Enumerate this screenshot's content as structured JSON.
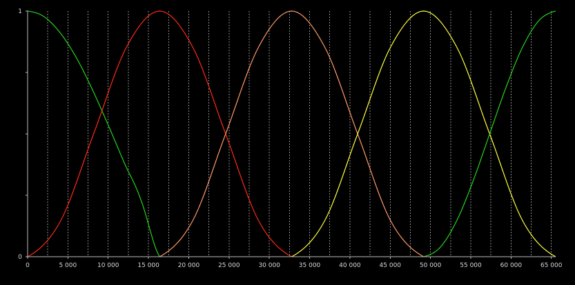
{
  "colors": {
    "background": "#000000",
    "frame": "#bfbfbf",
    "grid": "#8c8c8c",
    "text": "#d9d9d9"
  },
  "chart_data": {
    "type": "line",
    "title": "",
    "xlabel": "",
    "ylabel": "",
    "grid": true,
    "legend": "none",
    "xlim": [
      0,
      65536
    ],
    "ylim": [
      0,
      1
    ],
    "x_ticks": [
      0,
      5000,
      10000,
      15000,
      20000,
      25000,
      30000,
      35000,
      40000,
      45000,
      50000,
      55000,
      60000,
      65000
    ],
    "x_tick_labels": [
      "0",
      "5 000",
      "10 000",
      "15 000",
      "20 000",
      "25 000",
      "30 000",
      "35 000",
      "40 000",
      "45 000",
      "50 000",
      "55 000",
      "60 000",
      "65 000"
    ],
    "y_ticks": [
      0,
      0.25,
      0.5,
      0.75,
      1
    ],
    "y_tick_labels": [
      "0",
      "",
      "",
      "",
      "1"
    ],
    "minor_x_gridlines": [
      2500,
      7500,
      12500,
      17500,
      22500,
      27500,
      32500,
      37500,
      42500,
      47500,
      52500,
      57500,
      62500
    ],
    "series": [
      {
        "color": "#27d41d",
        "x": [
          0,
          2000,
          4000,
          6000,
          8000,
          10000,
          12000,
          14000,
          16384
        ],
        "y": [
          1.0,
          0.978,
          0.913,
          0.813,
          0.683,
          0.536,
          0.382,
          0.236,
          0.0
        ]
      },
      {
        "color": "#ff2a18",
        "x": [
          0,
          4096,
          8192,
          12288,
          16384,
          20480,
          24576,
          28672,
          32768
        ],
        "y": [
          0.0,
          0.146,
          0.5,
          0.854,
          1.0,
          0.854,
          0.5,
          0.146,
          0.0
        ]
      },
      {
        "color": "#ff9b6a",
        "x": [
          16384,
          20480,
          24576,
          28672,
          32768,
          36864,
          40960,
          45056,
          49152
        ],
        "y": [
          0.0,
          0.146,
          0.5,
          0.854,
          1.0,
          0.854,
          0.5,
          0.146,
          0.0
        ]
      },
      {
        "color": "#ffff40",
        "x": [
          32768,
          36864,
          40960,
          45056,
          49152,
          53248,
          57344,
          61440,
          65536
        ],
        "y": [
          0.0,
          0.146,
          0.5,
          0.854,
          1.0,
          0.854,
          0.5,
          0.146,
          0.0
        ]
      },
      {
        "color": "#27d41d",
        "x": [
          49152,
          51200,
          53248,
          55296,
          57344,
          59392,
          61440,
          63488,
          65536
        ],
        "y": [
          0.0,
          0.038,
          0.146,
          0.309,
          0.5,
          0.691,
          0.854,
          0.962,
          1.0
        ]
      }
    ]
  }
}
